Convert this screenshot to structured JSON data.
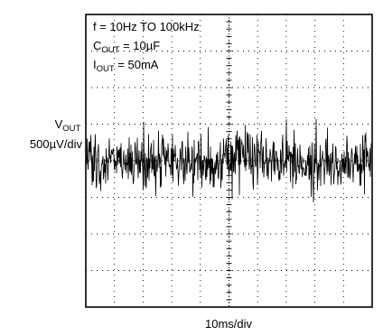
{
  "chart_data": {
    "type": "line",
    "title": "",
    "annotations": {
      "frequency": "f = 10Hz TO 100kHz",
      "cout_prefix": "C",
      "cout_sub": "OUT",
      "cout_value": " = 10µF",
      "iout_prefix": "I",
      "iout_sub": "OUT",
      "iout_value": " = 50mA"
    },
    "ylabel_prefix": "V",
    "ylabel_sub": "OUT",
    "ylabel_scale": "500µV/div",
    "xlabel": "10ms/div",
    "divisions": {
      "x": 10,
      "y": 8
    },
    "grid": true,
    "trace_color": "#000000",
    "series": [
      {
        "description": "output voltage noise band",
        "center_div_from_top": 4.0,
        "core_band_div": [
          3.2,
          4.7
        ],
        "peak_band_div": [
          2.3,
          5.5
        ]
      }
    ]
  }
}
